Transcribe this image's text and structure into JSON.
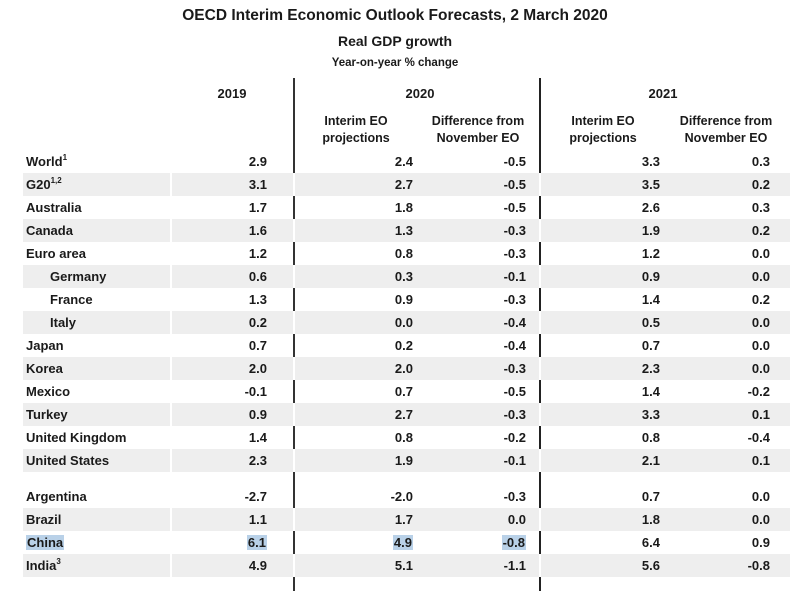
{
  "title": "OECD Interim Economic Outlook Forecasts, 2 March 2020",
  "subtitle": "Real GDP growth",
  "unit": "Year-on-year % change",
  "columns": {
    "y2019": "2019",
    "y2020": "2020",
    "y2021": "2021",
    "proj_line1": "Interim EO",
    "proj_line2": "projections",
    "diff_line1": "Difference from",
    "diff_line2": "November EO"
  },
  "highlight_color": "#b9d1e8",
  "rows": [
    {
      "name": "World",
      "sup": "1",
      "indent": false,
      "v2019": "2.9",
      "p2020": "2.4",
      "d2020": "-0.5",
      "p2021": "3.3",
      "d2021": "0.3"
    },
    {
      "name": "G20",
      "sup": "1,2",
      "indent": false,
      "v2019": "3.1",
      "p2020": "2.7",
      "d2020": "-0.5",
      "p2021": "3.5",
      "d2021": "0.2"
    },
    {
      "name": "Australia",
      "sup": "",
      "indent": false,
      "v2019": "1.7",
      "p2020": "1.8",
      "d2020": "-0.5",
      "p2021": "2.6",
      "d2021": "0.3"
    },
    {
      "name": "Canada",
      "sup": "",
      "indent": false,
      "v2019": "1.6",
      "p2020": "1.3",
      "d2020": "-0.3",
      "p2021": "1.9",
      "d2021": "0.2"
    },
    {
      "name": "Euro area",
      "sup": "",
      "indent": false,
      "v2019": "1.2",
      "p2020": "0.8",
      "d2020": "-0.3",
      "p2021": "1.2",
      "d2021": "0.0"
    },
    {
      "name": "Germany",
      "sup": "",
      "indent": true,
      "v2019": "0.6",
      "p2020": "0.3",
      "d2020": "-0.1",
      "p2021": "0.9",
      "d2021": "0.0"
    },
    {
      "name": "France",
      "sup": "",
      "indent": true,
      "v2019": "1.3",
      "p2020": "0.9",
      "d2020": "-0.3",
      "p2021": "1.4",
      "d2021": "0.2"
    },
    {
      "name": "Italy",
      "sup": "",
      "indent": true,
      "v2019": "0.2",
      "p2020": "0.0",
      "d2020": "-0.4",
      "p2021": "0.5",
      "d2021": "0.0"
    },
    {
      "name": "Japan",
      "sup": "",
      "indent": false,
      "v2019": "0.7",
      "p2020": "0.2",
      "d2020": "-0.4",
      "p2021": "0.7",
      "d2021": "0.0"
    },
    {
      "name": "Korea",
      "sup": "",
      "indent": false,
      "v2019": "2.0",
      "p2020": "2.0",
      "d2020": "-0.3",
      "p2021": "2.3",
      "d2021": "0.0"
    },
    {
      "name": "Mexico",
      "sup": "",
      "indent": false,
      "v2019": "-0.1",
      "p2020": "0.7",
      "d2020": "-0.5",
      "p2021": "1.4",
      "d2021": "-0.2"
    },
    {
      "name": "Turkey",
      "sup": "",
      "indent": false,
      "v2019": "0.9",
      "p2020": "2.7",
      "d2020": "-0.3",
      "p2021": "3.3",
      "d2021": "0.1"
    },
    {
      "name": "United Kingdom",
      "sup": "",
      "indent": false,
      "v2019": "1.4",
      "p2020": "0.8",
      "d2020": "-0.2",
      "p2021": "0.8",
      "d2021": "-0.4"
    },
    {
      "name": "United States",
      "sup": "",
      "indent": false,
      "v2019": "2.3",
      "p2020": "1.9",
      "d2020": "-0.1",
      "p2021": "2.1",
      "d2021": "0.1"
    },
    {
      "name": "Argentina",
      "sup": "",
      "indent": false,
      "v2019": "-2.7",
      "p2020": "-2.0",
      "d2020": "-0.3",
      "p2021": "0.7",
      "d2021": "0.0"
    },
    {
      "name": "Brazil",
      "sup": "",
      "indent": false,
      "v2019": "1.1",
      "p2020": "1.7",
      "d2020": "0.0",
      "p2021": "1.8",
      "d2021": "0.0"
    },
    {
      "name": "China",
      "sup": "",
      "indent": false,
      "highlighted": true,
      "v2019": "6.1",
      "p2020": "4.9",
      "d2020": "-0.8",
      "p2021": "6.4",
      "d2021": "0.9"
    },
    {
      "name": "India",
      "sup": "3",
      "indent": false,
      "v2019": "4.9",
      "p2020": "5.1",
      "d2020": "-1.1",
      "p2021": "5.6",
      "d2021": "-0.8"
    }
  ]
}
